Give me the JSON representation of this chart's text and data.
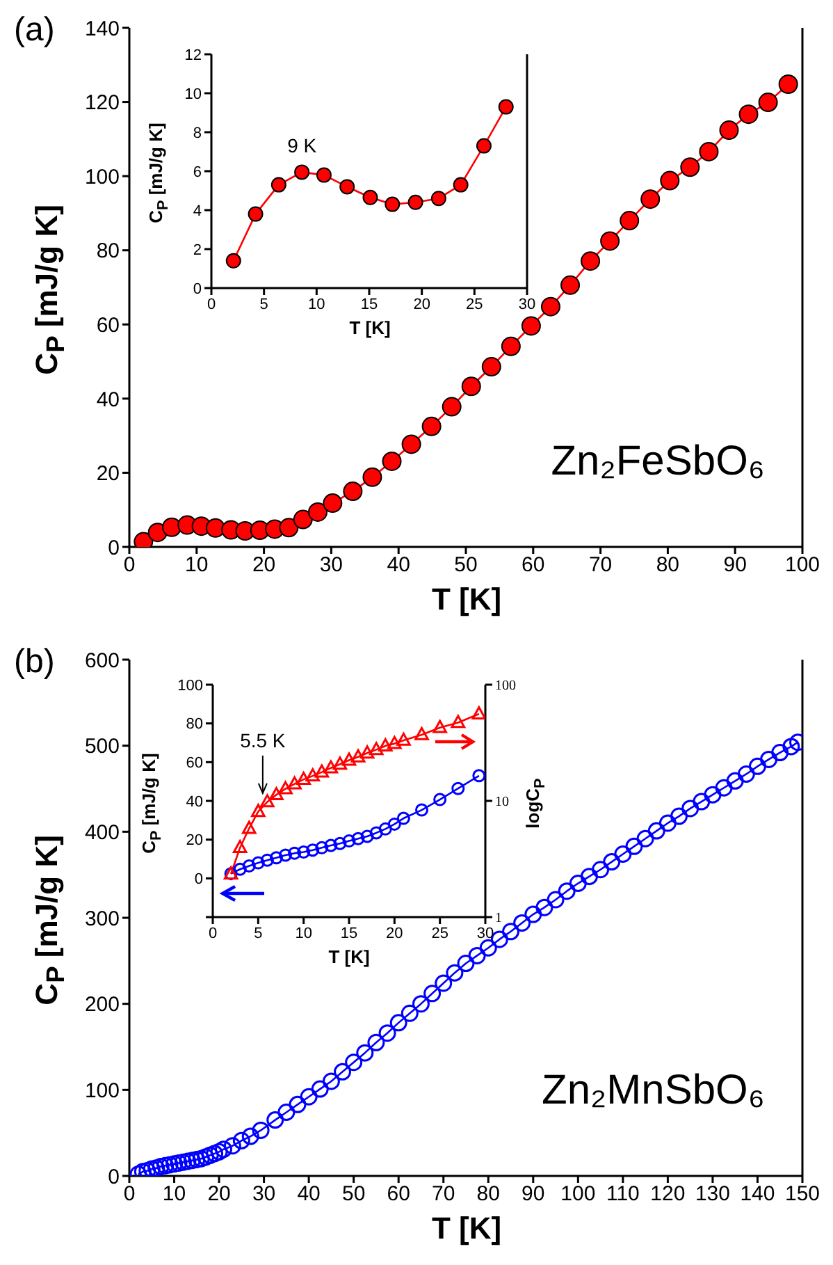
{
  "chart_data": [
    {
      "type": "line",
      "title": "(a)",
      "xlabel": "T [K]",
      "ylabel": "C$_{P}$ [mJ/g K]",
      "annotations": [
        "Zn₂FeSbO₆"
      ],
      "xlim": [
        0,
        100
      ],
      "xticks": [
        0,
        10,
        20,
        30,
        40,
        50,
        60,
        70,
        80,
        90,
        100
      ],
      "ylim": [
        0,
        140
      ],
      "yticks": [
        0,
        20,
        40,
        60,
        80,
        100,
        120,
        140
      ],
      "marker": "circle",
      "line_style": "solid",
      "series": [
        {
          "color": "#ff0000",
          "x": [
            2.1,
            4.2,
            6.3,
            8.6,
            10.7,
            12.8,
            15.1,
            17.2,
            19.4,
            21.6,
            23.7,
            25.8,
            28,
            30.2,
            33.2,
            36.1,
            39,
            41.9,
            44.9,
            47.9,
            50.8,
            53.8,
            56.7,
            59.7,
            62.6,
            65.5,
            68.5,
            71.4,
            74.3,
            77.4,
            80.3,
            83.3,
            86.1,
            89.1,
            92,
            94.9,
            97.9
          ],
          "values": [
            1.4,
            3.9,
            5.3,
            5.9,
            5.6,
            5.1,
            4.6,
            4.3,
            4.5,
            4.8,
            5.2,
            7.4,
            9.4,
            11.8,
            15,
            18.8,
            23.1,
            27.7,
            32.5,
            37.8,
            43.3,
            48.6,
            54.1,
            59.6,
            64.8,
            70.6,
            77.1,
            82.5,
            88,
            93.8,
            98.8,
            102.4,
            106.6,
            112.4,
            116.7,
            119.9,
            124.8
          ]
        }
      ]
    },
    {
      "type": "line",
      "xlabel": "T [K]",
      "ylabel": "C$_{P}$ [mJ/g K]",
      "annotations": [
        {
          "text": "9 K",
          "x": 8.6,
          "y": 5.95
        }
      ],
      "xlim": [
        0,
        30
      ],
      "xticks": [
        0,
        5,
        10,
        15,
        20,
        25,
        30
      ],
      "ylim": [
        0,
        12
      ],
      "yticks": [
        0,
        2,
        4,
        6,
        8,
        10,
        12
      ],
      "marker": "circle",
      "line_style": "solid",
      "series": [
        {
          "color": "#ff0000",
          "x": [
            2.1,
            4.2,
            6.4,
            8.6,
            10.7,
            12.9,
            15.1,
            17.2,
            19.4,
            21.6,
            23.7,
            25.9,
            28
          ],
          "values": [
            1.4,
            3.8,
            5.3,
            5.95,
            5.8,
            5.2,
            4.65,
            4.3,
            4.4,
            4.6,
            5.3,
            7.3,
            9.3
          ]
        }
      ]
    },
    {
      "type": "line",
      "title": "(b)",
      "xlabel": "T [K]",
      "ylabel": "C$_{P}$ [mJ/g K]",
      "annotations": [
        "Zn₂MnSbO₆"
      ],
      "xlim": [
        0,
        150
      ],
      "xticks": [
        0,
        10,
        20,
        30,
        40,
        50,
        60,
        70,
        80,
        90,
        100,
        110,
        120,
        130,
        140,
        150
      ],
      "ylim": [
        0,
        600
      ],
      "yticks": [
        0,
        100,
        200,
        300,
        400,
        500,
        600
      ],
      "marker": "circle",
      "line_style": "solid",
      "series": [
        {
          "color": "#0000ff",
          "x": [
            2,
            3,
            4,
            5,
            6,
            7,
            8,
            9,
            10,
            11,
            12,
            13,
            14,
            15,
            16,
            17,
            18,
            19,
            20,
            21,
            23,
            25,
            27,
            29.3,
            32.5,
            35,
            37.5,
            40,
            42.5,
            45,
            47.5,
            50,
            52.5,
            55,
            57.5,
            60,
            62.5,
            65,
            67.5,
            70,
            72.5,
            75,
            77.5,
            80,
            82.5,
            85,
            87.5,
            90,
            92.5,
            95,
            97.5,
            100,
            102.5,
            105,
            107.5,
            110,
            112.5,
            115,
            117.5,
            120,
            122.5,
            125,
            127.5,
            130,
            132.5,
            135,
            137.5,
            140,
            142.5,
            145,
            147.5,
            149
          ],
          "values": [
            2,
            5,
            6,
            8,
            9,
            11,
            12,
            13,
            14,
            15,
            16,
            17,
            18,
            19,
            20,
            22,
            24,
            26,
            28,
            31,
            35,
            41,
            46,
            53,
            65,
            74,
            83,
            92,
            101,
            110,
            121,
            132,
            143,
            155,
            166,
            178,
            189,
            200,
            212,
            224,
            236,
            247,
            256,
            265,
            275,
            284,
            294,
            304,
            312,
            321,
            331,
            340,
            348,
            356,
            365,
            374,
            383,
            392,
            401,
            410,
            418,
            427,
            435,
            443,
            451,
            459,
            467,
            476,
            484,
            492,
            499,
            504
          ]
        }
      ]
    },
    {
      "type": "line",
      "xlabel": "T [K]",
      "ylabel": "C$_{P}$ [mJ/g K]",
      "y2label": "logC$_{P}$",
      "annotations": [
        {
          "text": "5.5 K",
          "x": 5.5,
          "y": 44
        }
      ],
      "xlim": [
        0,
        30
      ],
      "xticks": [
        0,
        5,
        10,
        15,
        20,
        25,
        30
      ],
      "ylim": [
        -20,
        100
      ],
      "yticks": [
        {
          "value": -20,
          "label": null
        },
        0,
        20,
        40,
        60,
        80,
        100
      ],
      "y2lim": [
        1,
        100
      ],
      "y2ticks": [
        1,
        10,
        100
      ],
      "log": "y2",
      "line_style": "solid",
      "series": [
        {
          "color": "#0000ff",
          "marker": "circle",
          "x": [
            2,
            3,
            4,
            5,
            6,
            7,
            8,
            9,
            10,
            11,
            12,
            13,
            14,
            15,
            16,
            17,
            18,
            19,
            20,
            21,
            23,
            25,
            27,
            29.3
          ],
          "values": [
            2.4,
            4.7,
            6.4,
            8,
            9.4,
            10.6,
            12,
            13,
            13.6,
            14.6,
            15.8,
            17,
            18,
            19.3,
            20.5,
            21.7,
            23.5,
            25.5,
            28,
            31,
            35.3,
            40.7,
            46.4,
            53
          ]
        },
        {
          "color": "#ff0000",
          "marker": "triangle",
          "axis": "y2",
          "x": [
            2,
            3,
            4,
            5,
            6,
            7,
            8,
            9,
            10,
            11,
            12,
            13,
            14,
            15,
            16,
            17,
            18,
            19,
            20,
            21,
            23,
            25,
            27,
            29.3
          ],
          "values": [
            2.35,
            3.96,
            5.8,
            8.1,
            9.8,
            11.3,
            12.7,
            14,
            15.3,
            16.4,
            17.7,
            19.2,
            20.7,
            22.4,
            23.9,
            25.8,
            27.6,
            29.7,
            31.1,
            33.2,
            37.1,
            42.7,
            47.2,
            56
          ]
        }
      ]
    }
  ]
}
